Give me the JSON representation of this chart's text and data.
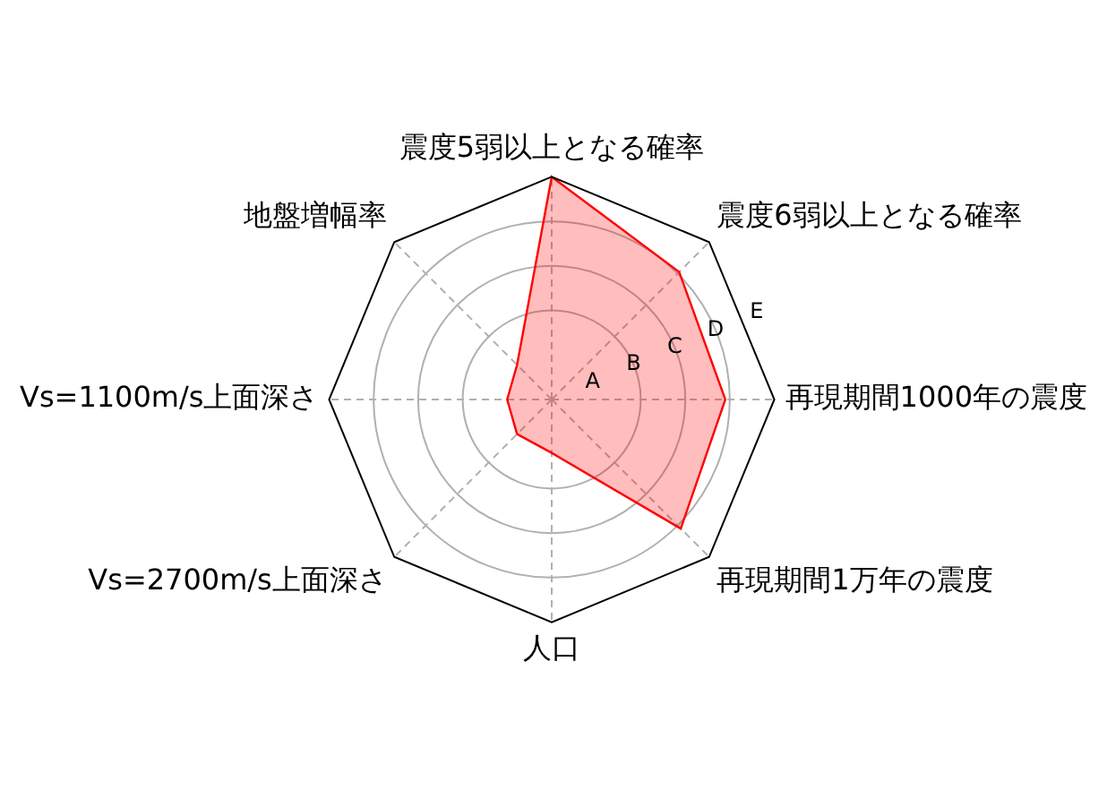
{
  "chart_data": {
    "type": "radar",
    "categories": [
      "震度5弱以上となる確率",
      "震度6弱以上となる確率",
      "再現期間1000年の震度",
      "再現期間1万年の震度",
      "人口",
      "Vs=2700m/s上面深さ",
      "Vs=1100m/s上面深さ",
      "地盤増幅率"
    ],
    "series": [
      {
        "color": "#ff0000",
        "values": [
          5,
          4.05,
          3.9,
          4.1,
          1.2,
          1.1,
          1.0,
          1.1
        ]
      }
    ],
    "ylim": [
      0,
      5
    ],
    "yticks": [
      {
        "value": 1,
        "label": "A"
      },
      {
        "value": 2,
        "label": "B"
      },
      {
        "value": 3,
        "label": "C"
      },
      {
        "value": 4,
        "label": "D"
      },
      {
        "value": 5,
        "label": "E"
      }
    ],
    "grid": true,
    "legend": false,
    "marker": "none",
    "line_style": "solid"
  }
}
